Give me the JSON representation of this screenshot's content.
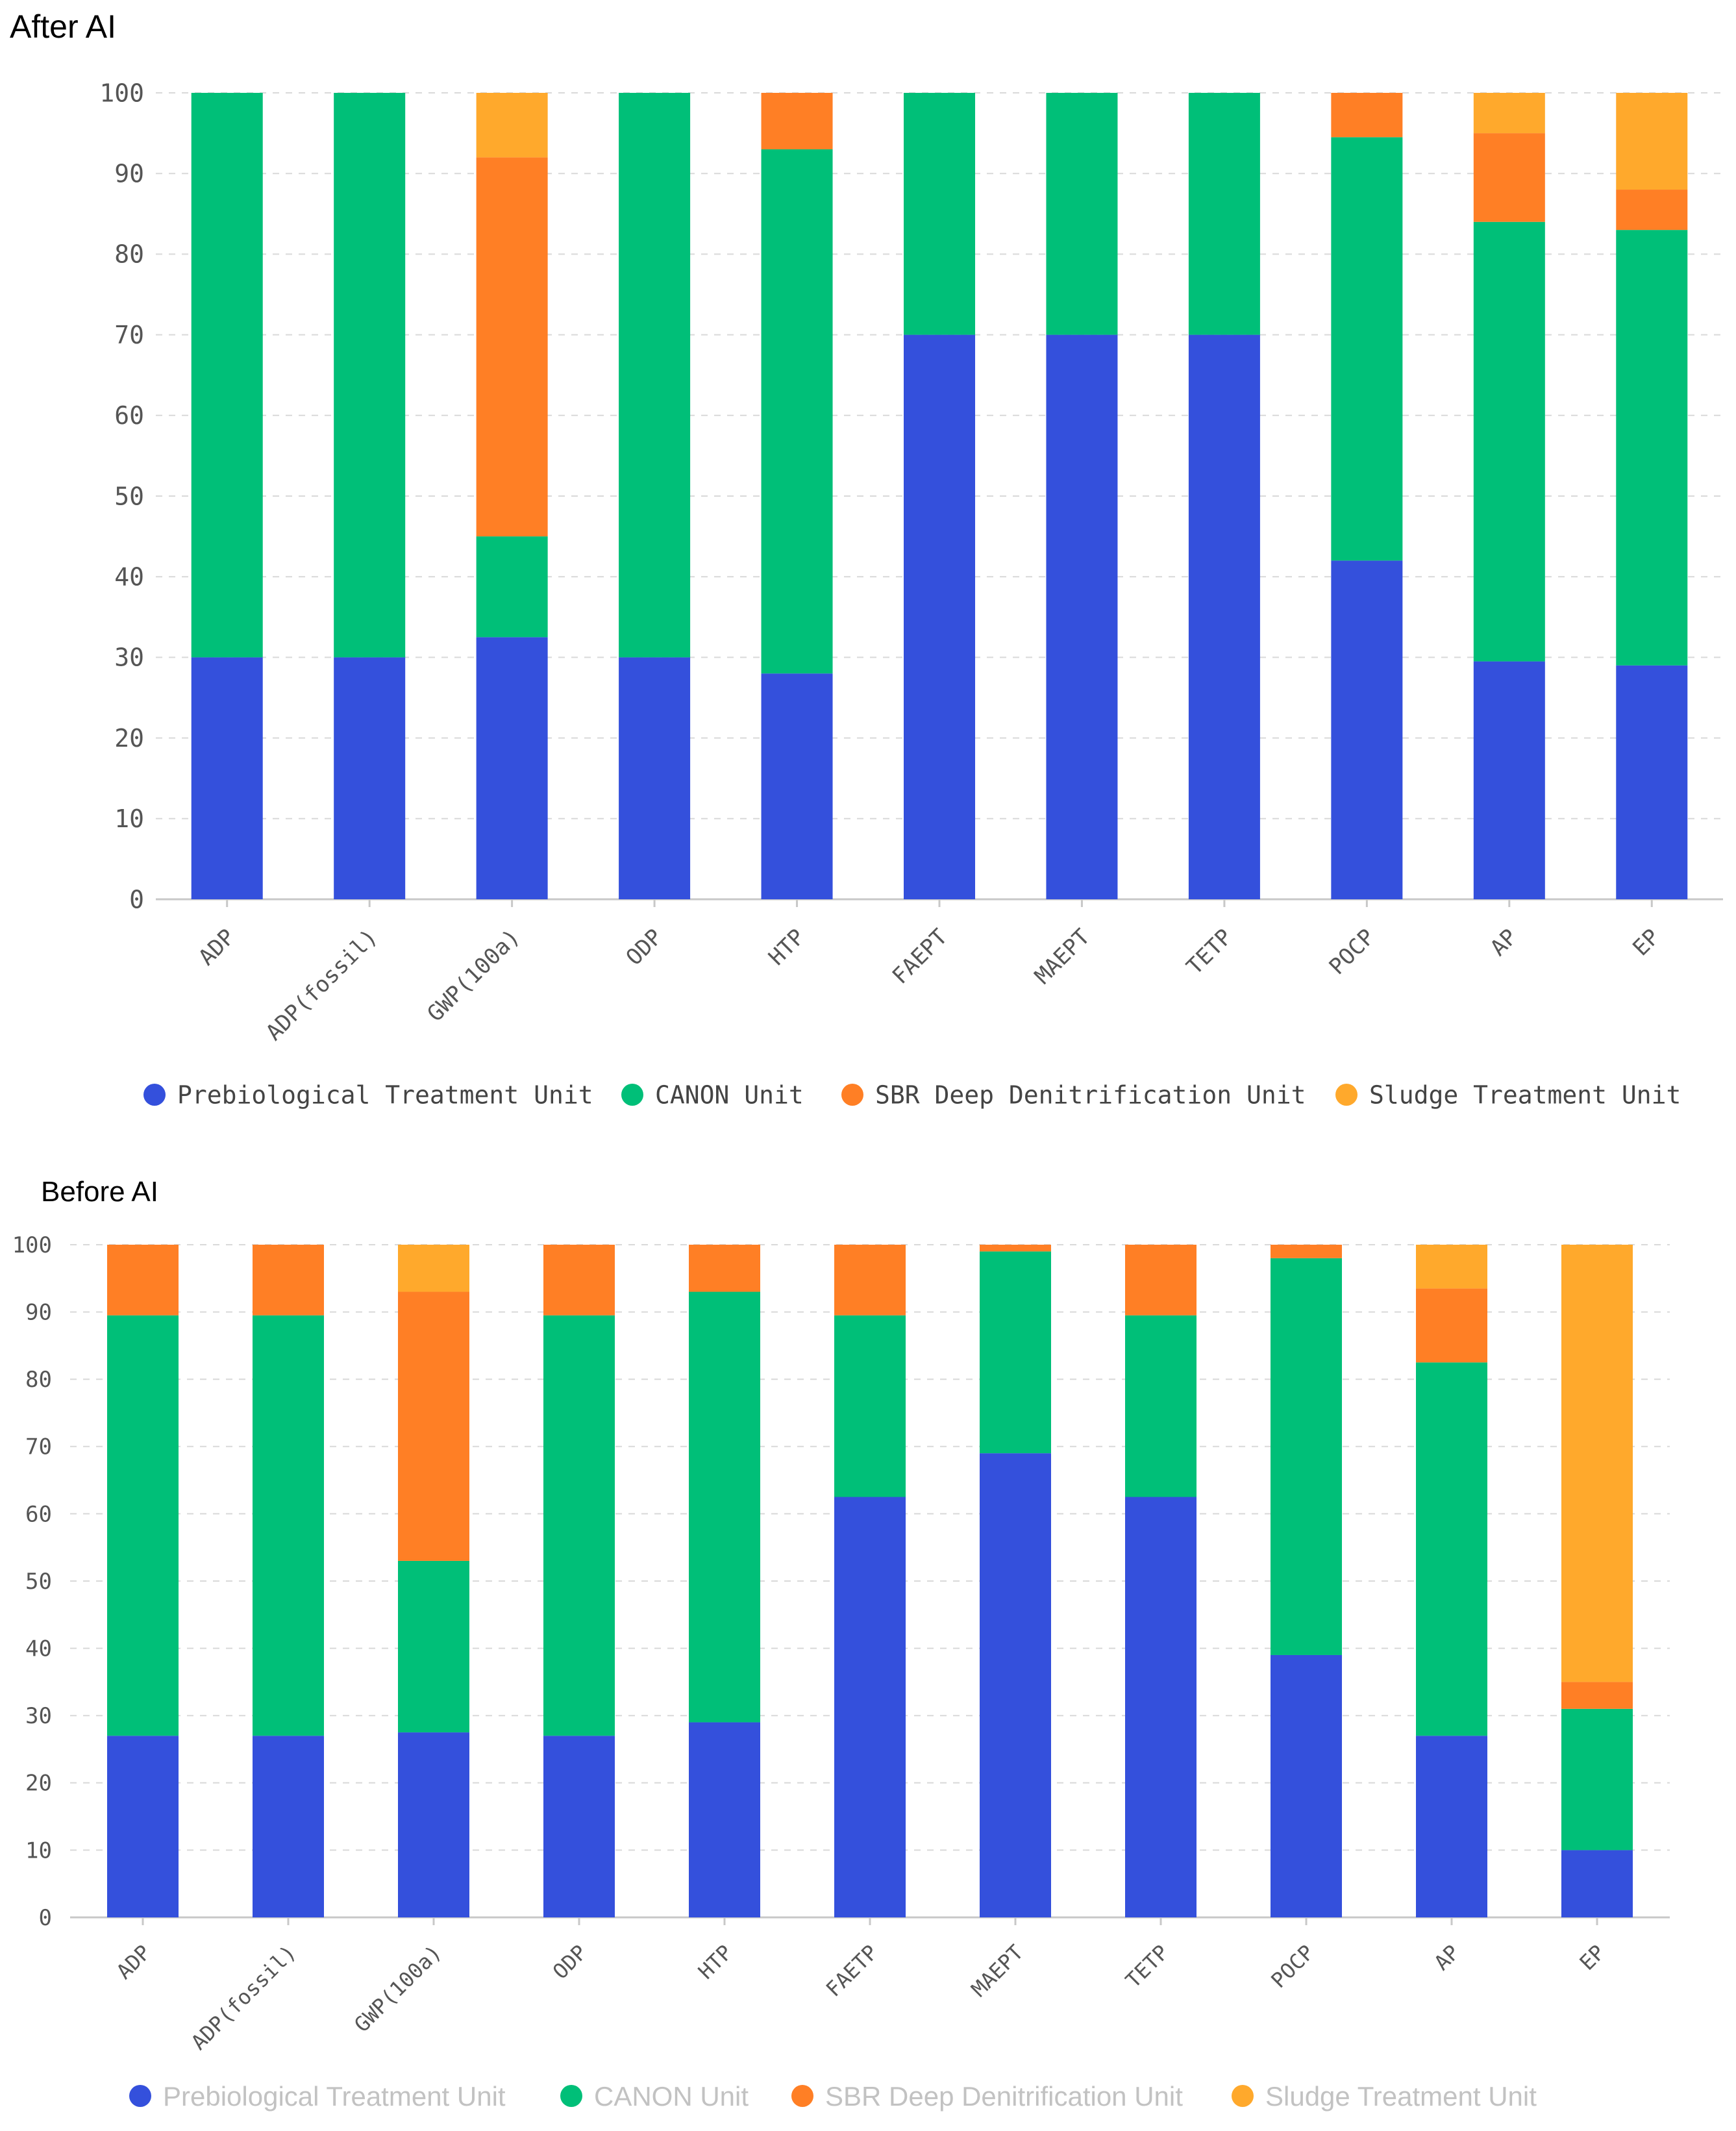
{
  "chart_data": [
    {
      "type": "bar",
      "stacked": true,
      "title": "After AI",
      "ylim": [
        0,
        100
      ],
      "yticks": [
        0,
        10,
        20,
        30,
        40,
        50,
        60,
        70,
        80,
        90,
        100
      ],
      "grid": true,
      "legend_position": "bottom",
      "categories": [
        "ADP",
        "ADP(fossil)",
        "GWP(100a)",
        "ODP",
        "HTP",
        "FAEPT",
        "MAEPT",
        "TETP",
        "POCP",
        "AP",
        "EP"
      ],
      "series": [
        {
          "name": "Prebiological Treatment Unit",
          "color": "#3450dc",
          "values": [
            30,
            30,
            32.5,
            30,
            28,
            70,
            70,
            70,
            42,
            29.5,
            29
          ]
        },
        {
          "name": "CANON Unit",
          "color": "#00bf78",
          "values": [
            70,
            70,
            12.5,
            70,
            65,
            30,
            30,
            30,
            52.5,
            54.5,
            54
          ]
        },
        {
          "name": "SBR Deep Denitrification Unit",
          "color": "#ff7f25",
          "values": [
            0,
            0,
            47,
            0,
            7,
            0,
            0,
            0,
            5.5,
            11,
            5
          ]
        },
        {
          "name": "Sludge Treatment Unit",
          "color": "#ffa92c",
          "values": [
            0,
            0,
            8,
            0,
            0,
            0,
            0,
            0,
            0,
            5,
            12
          ]
        }
      ]
    },
    {
      "type": "bar",
      "stacked": true,
      "title": "Before AI",
      "ylim": [
        0,
        100
      ],
      "yticks": [
        0,
        10,
        20,
        30,
        40,
        50,
        60,
        70,
        80,
        90,
        100
      ],
      "grid": true,
      "legend_position": "bottom",
      "categories": [
        "ADP",
        "ADP(fossil)",
        "GWP(100a)",
        "ODP",
        "HTP",
        "FAETP",
        "MAEPT",
        "TETP",
        "POCP",
        "AP",
        "EP"
      ],
      "series": [
        {
          "name": "Prebiological Treatment Unit",
          "color": "#3450dc",
          "values": [
            27,
            27,
            27.5,
            27,
            29,
            62.5,
            69,
            62.5,
            39,
            27,
            10
          ]
        },
        {
          "name": "CANON Unit",
          "color": "#00bf78",
          "values": [
            62.5,
            62.5,
            25.5,
            62.5,
            64,
            27,
            30,
            27,
            59,
            55.5,
            21
          ]
        },
        {
          "name": "SBR Deep Denitrification Unit",
          "color": "#ff7f25",
          "values": [
            10.5,
            10.5,
            40,
            10.5,
            7,
            10.5,
            1,
            10.5,
            2,
            11,
            4
          ]
        },
        {
          "name": "Sludge Treatment Unit",
          "color": "#ffa92c",
          "values": [
            0,
            0,
            7,
            0,
            0,
            0,
            0,
            0,
            0,
            6.5,
            65
          ]
        }
      ]
    }
  ]
}
